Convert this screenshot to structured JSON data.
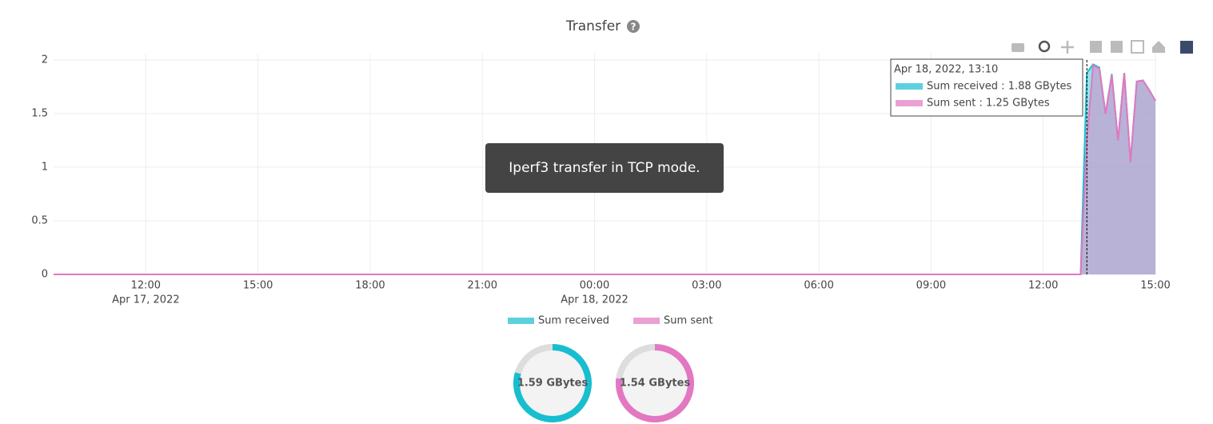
{
  "chart_data": {
    "type": "area",
    "title": "Transfer",
    "x": [
      "2022-04-17 09:32",
      "2022-04-18 13:00",
      "2022-04-18 13:10",
      "2022-04-18 13:20",
      "2022-04-18 13:30",
      "2022-04-18 13:40",
      "2022-04-18 13:50",
      "2022-04-18 14:00",
      "2022-04-18 14:10",
      "2022-04-18 14:20",
      "2022-04-18 14:30",
      "2022-04-18 14:40",
      "2022-04-18 14:50",
      "2022-04-18 15:00"
    ],
    "series": [
      {
        "name": "Sum received",
        "color": "#17becf",
        "values": [
          0,
          0,
          1.88,
          1.96,
          1.93,
          1.5,
          1.87,
          1.25,
          1.88,
          1.05,
          1.8,
          1.81,
          1.72,
          1.62
        ]
      },
      {
        "name": "Sum sent",
        "color": "#e377c2",
        "values": [
          0,
          0,
          1.25,
          1.95,
          1.92,
          1.5,
          1.86,
          1.25,
          1.88,
          1.05,
          1.8,
          1.81,
          1.72,
          1.62
        ]
      }
    ],
    "xlim": [
      "2022-04-17 09:32",
      "2022-04-18 15:00"
    ],
    "xticks": [
      {
        "value": "2022-04-17 12:00",
        "label": "12:00",
        "sublabel": "Apr 17, 2022"
      },
      {
        "value": "2022-04-17 15:00",
        "label": "15:00"
      },
      {
        "value": "2022-04-17 18:00",
        "label": "18:00"
      },
      {
        "value": "2022-04-17 21:00",
        "label": "21:00"
      },
      {
        "value": "2022-04-18 00:00",
        "label": "00:00",
        "sublabel": "Apr 18, 2022"
      },
      {
        "value": "2022-04-18 03:00",
        "label": "03:00"
      },
      {
        "value": "2022-04-18 06:00",
        "label": "06:00"
      },
      {
        "value": "2022-04-18 09:00",
        "label": "09:00"
      },
      {
        "value": "2022-04-18 12:00",
        "label": "12:00"
      },
      {
        "value": "2022-04-18 15:00",
        "label": "15:00"
      }
    ],
    "ylim": [
      0,
      2.06
    ],
    "yticks": [
      0,
      0.5,
      1,
      1.5,
      2
    ],
    "grid": true,
    "legend": "bottom"
  },
  "hover_tooltip": {
    "x": "2022-04-18 13:10",
    "title": "Apr 18, 2022, 13:10",
    "items": [
      "Sum received : 1.88 GBytes",
      "Sum sent : 1.25 GBytes"
    ]
  },
  "annotation": "Iperf3 transfer in TCP mode.",
  "gauges": [
    {
      "label": "1.59 GBytes",
      "value": 1.59,
      "max": 2,
      "color": "#17becf"
    },
    {
      "label": "1.54 GBytes",
      "value": 1.54,
      "max": 2,
      "color": "#e377c2"
    }
  ]
}
